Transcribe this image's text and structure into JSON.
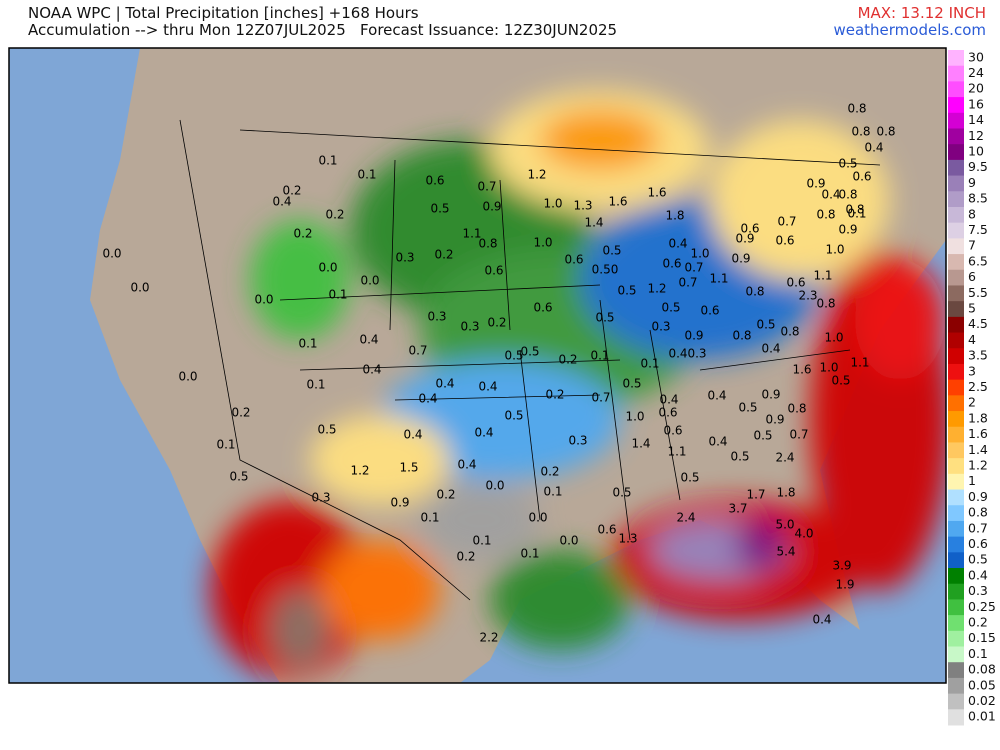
{
  "header": {
    "title": "NOAA WPC | Total Precipitation [inches] +168 Hours",
    "subtitle": "Accumulation --> thru Mon 12Z07JUL2025   Forecast Issuance: 12Z30JUN2025",
    "max": "MAX: 13.12 INCH",
    "site": "weathermodels.com"
  },
  "legend": [
    {
      "label": "30",
      "color": "#ffb3ff"
    },
    {
      "label": "24",
      "color": "#ff80ff"
    },
    {
      "label": "20",
      "color": "#ff4dff"
    },
    {
      "label": "16",
      "color": "#ff00ff"
    },
    {
      "label": "14",
      "color": "#d400d4"
    },
    {
      "label": "12",
      "color": "#a000a0"
    },
    {
      "label": "10",
      "color": "#800080"
    },
    {
      "label": "9.5",
      "color": "#7a5aa0"
    },
    {
      "label": "9",
      "color": "#9a80b8"
    },
    {
      "label": "8.5",
      "color": "#b09cc8"
    },
    {
      "label": "8",
      "color": "#c8b8d8"
    },
    {
      "label": "7.5",
      "color": "#ddd0e4"
    },
    {
      "label": "7",
      "color": "#f0e0e0"
    },
    {
      "label": "6.5",
      "color": "#d8b8b0"
    },
    {
      "label": "6",
      "color": "#b89890"
    },
    {
      "label": "5.5",
      "color": "#8c6a60"
    },
    {
      "label": "5",
      "color": "#6a4840"
    },
    {
      "label": "4.5",
      "color": "#8b0000"
    },
    {
      "label": "4",
      "color": "#b00000"
    },
    {
      "label": "3.5",
      "color": "#d00000"
    },
    {
      "label": "3",
      "color": "#ee1010"
    },
    {
      "label": "2.5",
      "color": "#ff4000"
    },
    {
      "label": "2",
      "color": "#ff7000"
    },
    {
      "label": "1.8",
      "color": "#ff9a00"
    },
    {
      "label": "1.6",
      "color": "#ffb030"
    },
    {
      "label": "1.4",
      "color": "#ffc860"
    },
    {
      "label": "1.2",
      "color": "#ffe080"
    },
    {
      "label": "1",
      "color": "#fff5b0"
    },
    {
      "label": "0.9",
      "color": "#b0e0ff"
    },
    {
      "label": "0.8",
      "color": "#80c8ff"
    },
    {
      "label": "0.7",
      "color": "#50a8f0"
    },
    {
      "label": "0.6",
      "color": "#2880e0"
    },
    {
      "label": "0.5",
      "color": "#1060c8"
    },
    {
      "label": "0.4",
      "color": "#008000"
    },
    {
      "label": "0.3",
      "color": "#20a020"
    },
    {
      "label": "0.25",
      "color": "#40c040"
    },
    {
      "label": "0.2",
      "color": "#70e070"
    },
    {
      "label": "0.15",
      "color": "#a0f0a0"
    },
    {
      "label": "0.1",
      "color": "#c8f8c8"
    },
    {
      "label": "0.08",
      "color": "#808080"
    },
    {
      "label": "0.05",
      "color": "#a0a0a0"
    },
    {
      "label": "0.02",
      "color": "#c0c0c0"
    },
    {
      "label": "0.01",
      "color": "#e0e0e0"
    }
  ],
  "point_labels": [
    "0.1",
    "0.1",
    "0.6",
    "0.7",
    "1.2",
    "0.2",
    "0.4",
    "0.5",
    "0.9",
    "1.0",
    "1.3",
    "1.6",
    "1.6",
    "1.8",
    "0.2",
    "1.4",
    "1.1",
    "0.8",
    "1.0",
    "0.2",
    "0.0",
    "0.3",
    "0.2",
    "0.6",
    "0.5",
    "0.0",
    "0.6",
    "0.50",
    "0.0",
    "0.0",
    "0.5",
    "0.0",
    "0.1",
    "0.6",
    "0.3",
    "0.3",
    "0.2",
    "0.5",
    "0.1",
    "0.4",
    "0.7",
    "0.4",
    "0.5",
    "0.5",
    "0.2",
    "0.1",
    "0.0",
    "0.4",
    "0.4",
    "0.1",
    "0.4",
    "0.2",
    "0.7",
    "0.2",
    "0.5",
    "1.0",
    "0.6",
    "0.5",
    "0.4",
    "0.4",
    "0.1",
    "0.3",
    "1.4",
    "0.6",
    "0.5",
    "1.2",
    "1.5",
    "0.4",
    "0.2",
    "0.0",
    "0.1",
    "0.2",
    "0.3",
    "0.9",
    "0.1",
    "0.0",
    "0.1",
    "0.0",
    "0.1",
    "0.2",
    "2.2",
    "0.5",
    "0.6",
    "1.3",
    "2.4",
    "3.7",
    "1.7",
    "1.8",
    "5.0",
    "4.0",
    "5.4",
    "3.9",
    "1.9",
    "0.4",
    "0.5",
    "0.5",
    "2.4",
    "1.1",
    "0.4",
    "0.5",
    "0.7",
    "0.5",
    "0.9",
    "0.9",
    "0.8",
    "1.6",
    "1.0",
    "1.1",
    "0.5",
    "0.4",
    "0.4",
    "0.5",
    "0.1",
    "0.4",
    "0.3",
    "0.9",
    "0.8",
    "0.4",
    "0.3",
    "0.5",
    "0.6",
    "0.5",
    "0.8",
    "1.0",
    "2.3",
    "0.8",
    "1.2",
    "0.7",
    "1.1",
    "0.8",
    "0.6",
    "1.1",
    "0.6",
    "0.7",
    "1.0",
    "0.9",
    "0.4",
    "0.9",
    "0.6",
    "1.0",
    "0.6",
    "0.7",
    "0.8",
    "0.1",
    "0.9",
    "0.9",
    "0.5",
    "0.6",
    "0.4",
    "0.8",
    "0.8",
    "0.8",
    "0.8",
    "0.4",
    "0.8"
  ]
}
